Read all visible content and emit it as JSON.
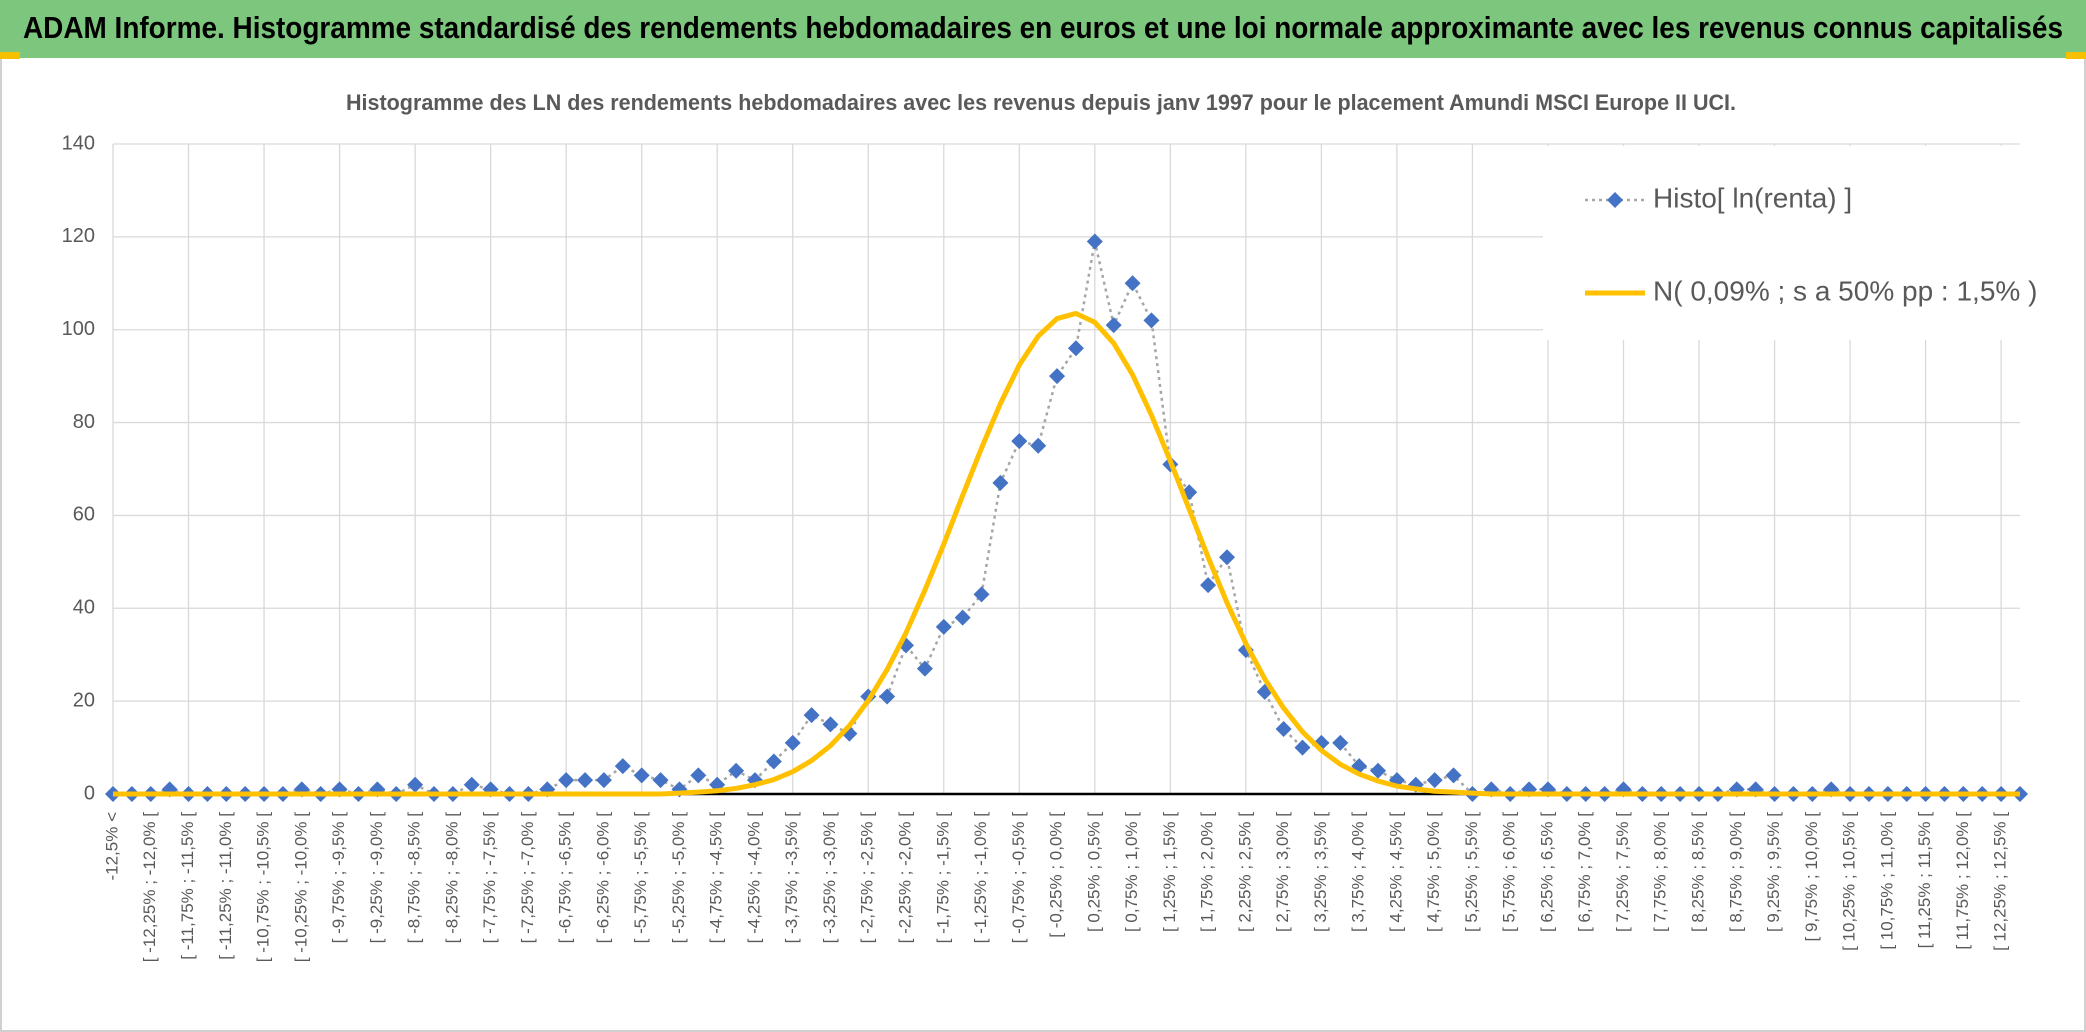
{
  "chart_data": {
    "type": "line",
    "title": "ADAM Informe. Histogramme standardisé des rendements hebdomadaires en euros et une loi normale approximante avec les revenus connus capitalisés",
    "subtitle": "Histogramme des LN des rendements hebdomadaires avec les revenus depuis janv 1997 pour le placement Amundi MSCI Europe II UCI.",
    "categories": [
      "-12,5% <",
      null,
      "[ -12,25% ; -12,0% [",
      null,
      "[ -11,75% ; -11,5% [",
      null,
      "[ -11,25% ; -11,0% [",
      null,
      "[ -10,75% ; -10,5% [",
      null,
      "[ -10,25% ; -10,0% [",
      null,
      "[ -9,75% ; -9,5% [",
      null,
      "[ -9,25% ; -9,0% [",
      null,
      "[ -8,75% ; -8,5% [",
      null,
      "[ -8,25% ; -8,0% [",
      null,
      "[ -7,75% ; -7,5% [",
      null,
      "[ -7,25% ; -7,0% [",
      null,
      "[ -6,75% ; -6,5% [",
      null,
      "[ -6,25% ; -6,0% [",
      null,
      "[ -5,75% ; -5,5% [",
      null,
      "[ -5,25% ; -5,0% [",
      null,
      "[ -4,75% ; -4,5% [",
      null,
      "[ -4,25% ; -4,0% [",
      null,
      "[ -3,75% ; -3,5% [",
      null,
      "[ -3,25% ; -3,0% [",
      null,
      "[ -2,75% ; -2,5% [",
      null,
      "[ -2,25% ; -2,0% [",
      null,
      "[ -1,75% ; -1,5% [",
      null,
      "[ -1,25% ; -1,0% [",
      null,
      "[ -0,75% ; -0,5% [",
      null,
      "[ -0,25% ; 0,0% [",
      null,
      "[ 0,25% ; 0,5% [",
      null,
      "[ 0,75% ; 1,0% [",
      null,
      "[ 1,25% ; 1,5% [",
      null,
      "[ 1,75% ; 2,0% [",
      null,
      "[ 2,25% ; 2,5% [",
      null,
      "[ 2,75% ; 3,0% [",
      null,
      "[ 3,25% ; 3,5% [",
      null,
      "[ 3,75% ; 4,0% [",
      null,
      "[ 4,25% ; 4,5% [",
      null,
      "[ 4,75% ; 5,0% [",
      null,
      "[ 5,25% ; 5,5% [",
      null,
      "[ 5,75% ; 6,0% [",
      null,
      "[ 6,25% ; 6,5% [",
      null,
      "[ 6,75% ; 7,0% [",
      null,
      "[ 7,25% ; 7,5% [",
      null,
      "[ 7,75% ; 8,0% [",
      null,
      "[ 8,25% ; 8,5% [",
      null,
      "[ 8,75% ; 9,0% [",
      null,
      "[ 9,25% ; 9,5% [",
      null,
      "[ 9,75% ; 10,0% [",
      null,
      "[ 10,25% ; 10,5% [",
      null,
      "[ 10,75% ; 11,0% [",
      null,
      "[ 11,25% ; 11,5% [",
      null,
      "[ 11,75% ; 12,0% [",
      null,
      "[ 12,25% ; 12,5% [",
      null
    ],
    "series": [
      {
        "name": "Histo[ ln(renta) ]",
        "color": "#4472c4",
        "marker": "diamond",
        "line_style": "dotted",
        "values": [
          0,
          0,
          0,
          1,
          0,
          0,
          0,
          0,
          0,
          0,
          1,
          0,
          1,
          0,
          1,
          0,
          2,
          0,
          0,
          2,
          1,
          0,
          0,
          1,
          3,
          3,
          3,
          6,
          4,
          3,
          1,
          4,
          2,
          5,
          3,
          7,
          11,
          17,
          15,
          13,
          21,
          21,
          32,
          27,
          36,
          38,
          43,
          67,
          76,
          75,
          90,
          96,
          119,
          101,
          110,
          102,
          71,
          65,
          45,
          51,
          31,
          22,
          14,
          10,
          11,
          11,
          6,
          5,
          3,
          2,
          3,
          4,
          0,
          1,
          0,
          1,
          1,
          0,
          0,
          0,
          1,
          0,
          0,
          0,
          0,
          0,
          1,
          1,
          0,
          0,
          0,
          1,
          0,
          0,
          0,
          0,
          0,
          0,
          0,
          0,
          0,
          0
        ]
      },
      {
        "name": "N( 0,09% ; s a 50% pp : 1,5% )",
        "color": "#ffc000",
        "line_style": "solid",
        "values": [
          0,
          0,
          0,
          0,
          0,
          0,
          0,
          0,
          0,
          0,
          0,
          0,
          0,
          0,
          0,
          0,
          0,
          0,
          0,
          0,
          0,
          0,
          0,
          0,
          0,
          0,
          0,
          0,
          0,
          0,
          0.2,
          0.4,
          0.7,
          1.2,
          2.0,
          3.1,
          4.8,
          7.2,
          10.4,
          14.7,
          20.1,
          26.8,
          34.7,
          43.9,
          53.8,
          64.3,
          74.5,
          84.1,
          92.4,
          98.6,
          102.4,
          103.5,
          101.6,
          97.1,
          90.3,
          81.6,
          71.7,
          61.3,
          51.0,
          41.2,
          32.4,
          24.8,
          18.5,
          13.4,
          9.4,
          6.4,
          4.3,
          2.8,
          1.7,
          1.1,
          0.6,
          0.4,
          0.2,
          0,
          0,
          0,
          0,
          0,
          0,
          0,
          0,
          0,
          0,
          0,
          0,
          0,
          0,
          0,
          0,
          0,
          0,
          0,
          0,
          0,
          0,
          0,
          0,
          0,
          0,
          0,
          0,
          0
        ]
      }
    ],
    "ylim": [
      0,
      140
    ],
    "yticks": [
      0,
      20,
      40,
      60,
      80,
      100,
      120,
      140
    ],
    "grid": true,
    "legend": "top-right"
  }
}
